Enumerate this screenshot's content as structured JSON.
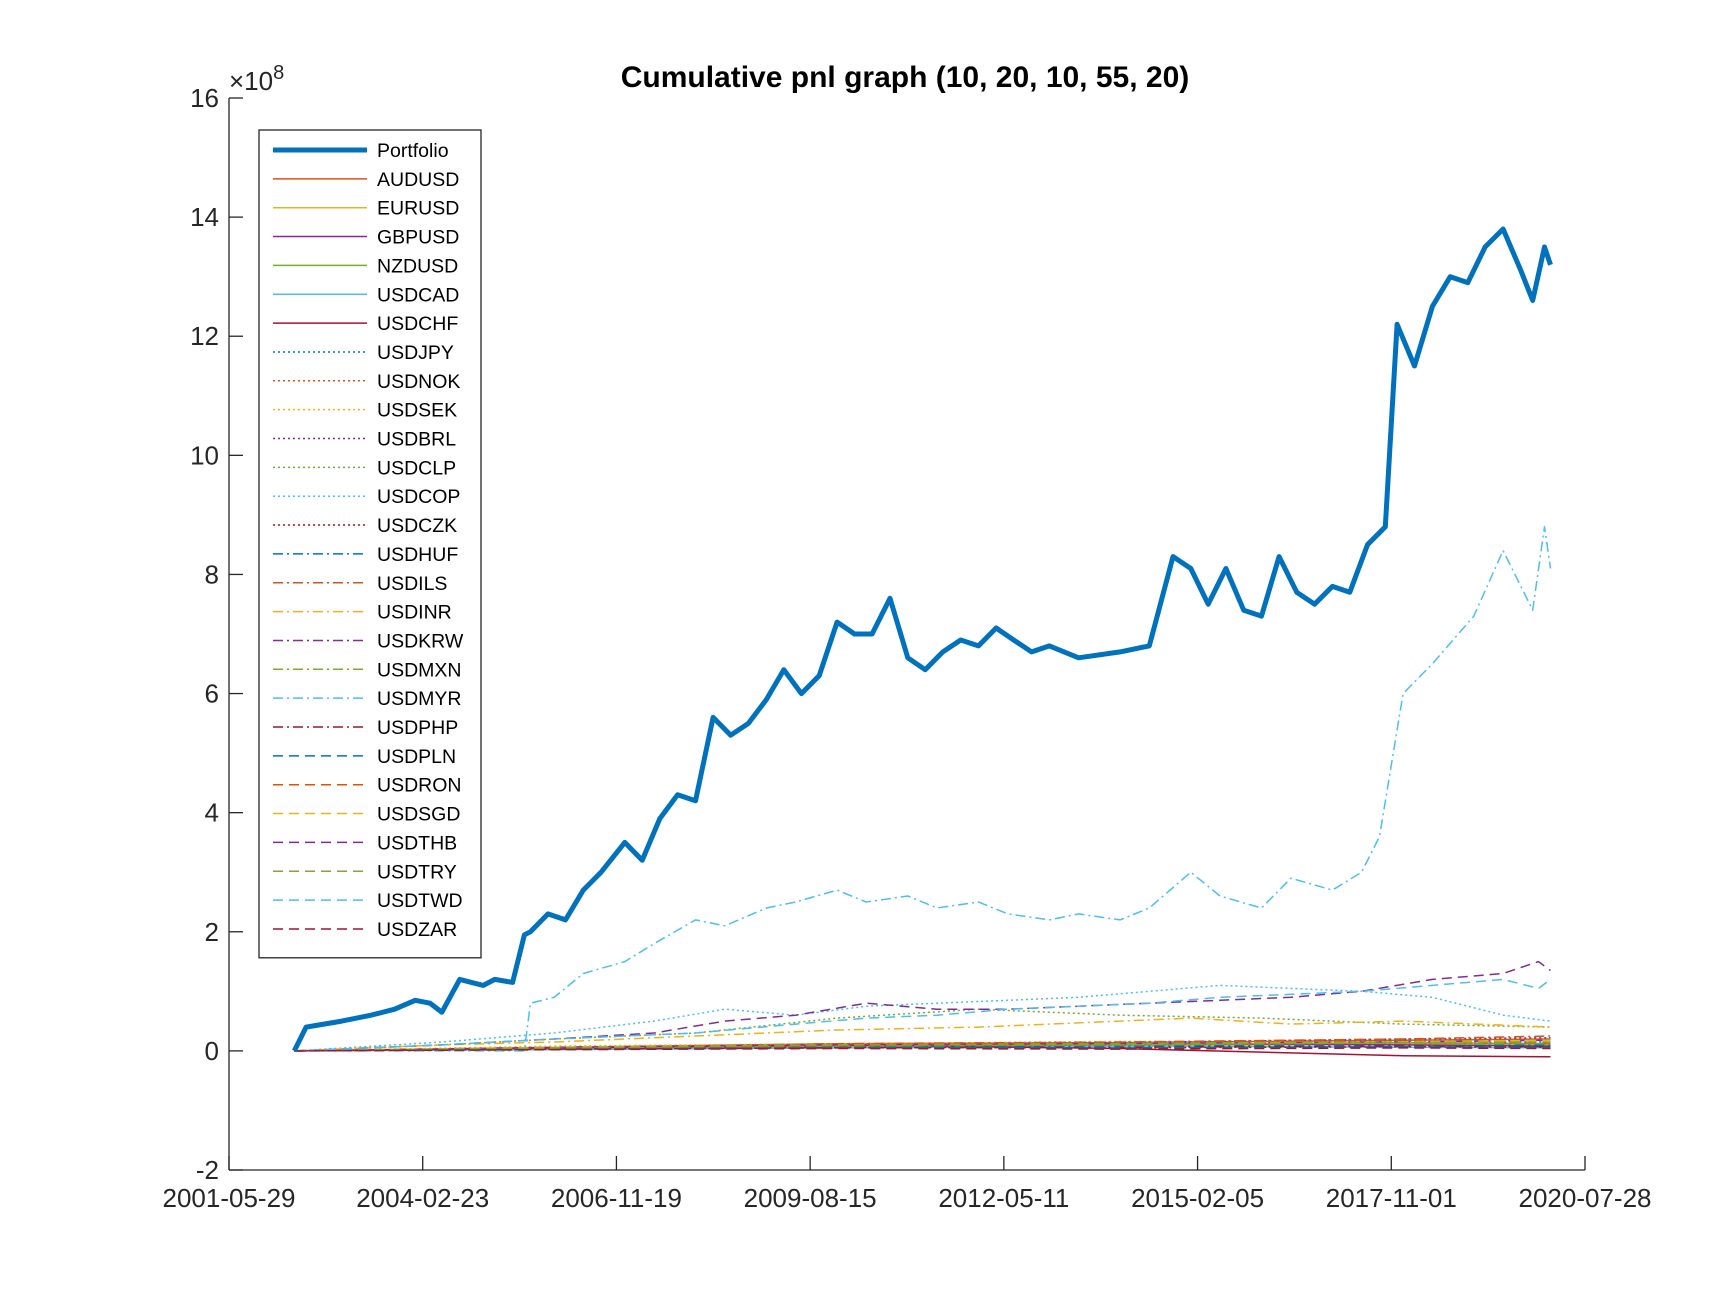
{
  "chart_data": {
    "type": "line",
    "title": "Cumulative pnl graph (10, 20, 10, 55, 20)",
    "xlabel": "",
    "ylabel": "",
    "y_multiplier_label": "×10",
    "y_multiplier_exponent": "8",
    "ylim": [
      -2,
      16
    ],
    "xlim": [
      "2001-05-29",
      "2020-07-28"
    ],
    "x_ticks": [
      "2001-05-29",
      "2004-02-23",
      "2006-11-19",
      "2009-08-15",
      "2012-05-11",
      "2015-02-05",
      "2017-11-01",
      "2020-07-28"
    ],
    "y_ticks": [
      "-2",
      "0",
      "2",
      "4",
      "6",
      "8",
      "10",
      "12",
      "14",
      "16"
    ],
    "grid": false,
    "legend_position": "top-left",
    "series": [
      {
        "name": "Portfolio",
        "color": "#0072BD",
        "style": "solid",
        "thick": true,
        "x": [
          "2002-05-01",
          "2002-07-01",
          "2002-10-01",
          "2003-01-01",
          "2003-06-01",
          "2003-10-01",
          "2004-01-15",
          "2004-04-01",
          "2004-06-01",
          "2004-09-01",
          "2004-11-01",
          "2005-01-01",
          "2005-03-01",
          "2005-06-01",
          "2005-08-01",
          "2005-09-01",
          "2005-12-01",
          "2006-03-01",
          "2006-06-01",
          "2006-09-01",
          "2007-01-01",
          "2007-04-01",
          "2007-07-01",
          "2007-10-01",
          "2008-01-01",
          "2008-04-01",
          "2008-07-01",
          "2008-10-01",
          "2009-01-01",
          "2009-04-01",
          "2009-07-01",
          "2009-10-01",
          "2010-01-01",
          "2010-04-01",
          "2010-07-01",
          "2010-10-01",
          "2011-01-01",
          "2011-04-01",
          "2011-07-01",
          "2011-10-01",
          "2012-01-01",
          "2012-04-01",
          "2012-07-01",
          "2012-10-01",
          "2013-01-01",
          "2013-06-01",
          "2014-01-01",
          "2014-06-01",
          "2014-10-01",
          "2015-01-01",
          "2015-04-01",
          "2015-07-01",
          "2015-10-01",
          "2016-01-01",
          "2016-04-01",
          "2016-07-01",
          "2016-10-01",
          "2017-01-01",
          "2017-04-01",
          "2017-07-01",
          "2017-10-01",
          "2017-12-01",
          "2018-03-01",
          "2018-06-01",
          "2018-09-01",
          "2018-12-01",
          "2019-03-01",
          "2019-06-01",
          "2019-09-01",
          "2019-11-01",
          "2020-01-01",
          "2020-02-01"
        ],
        "y": [
          0,
          0.4,
          0.45,
          0.5,
          0.6,
          0.7,
          0.85,
          0.8,
          0.65,
          1.2,
          1.15,
          1.1,
          1.2,
          1.15,
          1.95,
          2.0,
          2.3,
          2.2,
          2.7,
          3.0,
          3.5,
          3.2,
          3.9,
          4.3,
          4.2,
          5.6,
          5.3,
          5.5,
          5.9,
          6.4,
          6.0,
          6.3,
          7.2,
          7.0,
          7.0,
          7.6,
          6.6,
          6.4,
          6.7,
          6.9,
          6.8,
          7.1,
          6.9,
          6.7,
          6.8,
          6.6,
          6.7,
          6.8,
          8.3,
          8.1,
          7.5,
          8.1,
          7.4,
          7.3,
          8.3,
          7.7,
          7.5,
          7.8,
          7.7,
          8.5,
          8.8,
          12.2,
          11.5,
          12.5,
          13.0,
          12.9,
          13.5,
          13.8,
          13.1,
          12.6,
          13.5,
          13.2
        ]
      },
      {
        "name": "AUDUSD",
        "color": "#D95319",
        "style": "solid",
        "thick": false,
        "x": [
          "2002-05-01",
          "2006-01-01",
          "2010-01-01",
          "2014-01-01",
          "2018-01-01",
          "2020-02-01"
        ],
        "y": [
          0,
          0.06,
          0.12,
          0.14,
          0.18,
          0.2
        ]
      },
      {
        "name": "EURUSD",
        "color": "#EDB120",
        "style": "solid",
        "thick": false,
        "x": [
          "2002-05-01",
          "2006-01-01",
          "2010-01-01",
          "2014-01-01",
          "2018-01-01",
          "2020-02-01"
        ],
        "y": [
          0,
          0.04,
          0.1,
          0.08,
          0.12,
          0.1
        ]
      },
      {
        "name": "GBPUSD",
        "color": "#7E2F8E",
        "style": "solid",
        "thick": false,
        "x": [
          "2002-05-01",
          "2006-01-01",
          "2010-01-01",
          "2014-01-01",
          "2018-01-01",
          "2020-02-01"
        ],
        "y": [
          0,
          0.05,
          0.09,
          0.12,
          0.1,
          0.08
        ]
      },
      {
        "name": "NZDUSD",
        "color": "#77AC30",
        "style": "solid",
        "thick": false,
        "x": [
          "2002-05-01",
          "2006-01-01",
          "2010-01-01",
          "2014-01-01",
          "2018-01-01",
          "2020-02-01"
        ],
        "y": [
          0,
          0.03,
          0.08,
          0.1,
          0.14,
          0.12
        ]
      },
      {
        "name": "USDCAD",
        "color": "#4DBEEE",
        "style": "solid",
        "thick": false,
        "x": [
          "2002-05-01",
          "2006-01-01",
          "2010-01-01",
          "2014-01-01",
          "2018-01-01",
          "2020-02-01"
        ],
        "y": [
          0,
          0.02,
          0.05,
          0.08,
          0.06,
          0.05
        ]
      },
      {
        "name": "USDCHF",
        "color": "#A2142F",
        "style": "solid",
        "thick": false,
        "x": [
          "2002-05-01",
          "2006-01-01",
          "2010-01-01",
          "2014-01-01",
          "2018-01-01",
          "2020-02-01"
        ],
        "y": [
          0,
          0.05,
          0.1,
          0.04,
          -0.08,
          -0.1
        ]
      },
      {
        "name": "USDJPY",
        "color": "#0072BD",
        "style": "dotted",
        "thick": false,
        "x": [
          "2002-05-01",
          "2006-01-01",
          "2010-01-01",
          "2014-01-01",
          "2018-01-01",
          "2020-02-01"
        ],
        "y": [
          0,
          0.04,
          0.08,
          0.12,
          0.16,
          0.15
        ]
      },
      {
        "name": "USDNOK",
        "color": "#D95319",
        "style": "dotted",
        "thick": false,
        "x": [
          "2002-05-01",
          "2006-01-01",
          "2010-01-01",
          "2014-01-01",
          "2018-01-01",
          "2020-02-01"
        ],
        "y": [
          0,
          0.03,
          0.07,
          0.1,
          0.13,
          0.12
        ]
      },
      {
        "name": "USDSEK",
        "color": "#EDB120",
        "style": "dotted",
        "thick": false,
        "x": [
          "2002-05-01",
          "2006-01-01",
          "2010-01-01",
          "2014-01-01",
          "2018-01-01",
          "2020-02-01"
        ],
        "y": [
          0,
          0.08,
          0.12,
          0.16,
          0.14,
          0.18
        ]
      },
      {
        "name": "USDBRL",
        "color": "#7E2F8E",
        "style": "dotted",
        "thick": false,
        "x": [
          "2002-05-01",
          "2006-01-01",
          "2010-01-01",
          "2014-01-01",
          "2018-01-01",
          "2020-02-01"
        ],
        "y": [
          0,
          0.05,
          0.1,
          0.14,
          0.2,
          0.22
        ]
      },
      {
        "name": "USDCLP",
        "color": "#77AC30",
        "style": "dotted",
        "thick": false,
        "x": [
          "2002-05-01",
          "2004-06-01",
          "2006-01-01",
          "2008-01-01",
          "2010-01-01",
          "2012-01-01",
          "2014-01-01",
          "2016-01-01",
          "2018-01-01",
          "2020-02-01"
        ],
        "y": [
          0,
          0.1,
          0.2,
          0.3,
          0.55,
          0.7,
          0.6,
          0.55,
          0.45,
          0.4
        ]
      },
      {
        "name": "USDCOP",
        "color": "#4DBEEE",
        "style": "dotted",
        "thick": false,
        "x": [
          "2002-05-01",
          "2004-06-01",
          "2006-01-01",
          "2007-06-01",
          "2008-06-01",
          "2009-06-01",
          "2010-06-01",
          "2011-06-01",
          "2012-06-01",
          "2013-06-01",
          "2014-06-01",
          "2015-06-01",
          "2016-06-01",
          "2017-06-01",
          "2018-06-01",
          "2019-06-01",
          "2020-02-01"
        ],
        "y": [
          0,
          0.15,
          0.3,
          0.5,
          0.7,
          0.6,
          0.75,
          0.8,
          0.85,
          0.9,
          1.0,
          1.1,
          1.05,
          1.0,
          0.9,
          0.6,
          0.5
        ]
      },
      {
        "name": "USDCZK",
        "color": "#A2142F",
        "style": "dotted",
        "thick": false,
        "x": [
          "2002-05-01",
          "2006-01-01",
          "2010-01-01",
          "2014-01-01",
          "2018-01-01",
          "2020-02-01"
        ],
        "y": [
          0,
          0.03,
          0.06,
          0.05,
          0.07,
          0.06
        ]
      },
      {
        "name": "USDHUF",
        "color": "#0072BD",
        "style": "dashdot",
        "thick": false,
        "x": [
          "2002-05-01",
          "2006-01-01",
          "2010-01-01",
          "2014-01-01",
          "2018-01-01",
          "2020-02-01"
        ],
        "y": [
          0,
          0.04,
          0.06,
          0.09,
          0.08,
          0.1
        ]
      },
      {
        "name": "USDILS",
        "color": "#D95319",
        "style": "dashdot",
        "thick": false,
        "x": [
          "2002-05-01",
          "2006-01-01",
          "2010-01-01",
          "2014-01-01",
          "2018-01-01",
          "2020-02-01"
        ],
        "y": [
          0,
          0.05,
          0.12,
          0.15,
          0.2,
          0.25
        ]
      },
      {
        "name": "USDINR",
        "color": "#EDB120",
        "style": "dashdot",
        "thick": false,
        "x": [
          "2002-05-01",
          "2004-06-01",
          "2006-01-01",
          "2008-01-01",
          "2010-01-01",
          "2012-01-01",
          "2014-01-01",
          "2015-01-01",
          "2016-06-01",
          "2018-01-01",
          "2020-02-01"
        ],
        "y": [
          0,
          0.1,
          0.15,
          0.25,
          0.35,
          0.4,
          0.5,
          0.55,
          0.45,
          0.5,
          0.4
        ]
      },
      {
        "name": "USDKRW",
        "color": "#7E2F8E",
        "style": "dashdot",
        "thick": false,
        "x": [
          "2002-05-01",
          "2006-01-01",
          "2010-01-01",
          "2014-01-01",
          "2018-01-01",
          "2020-02-01"
        ],
        "y": [
          0,
          0.06,
          0.1,
          0.12,
          0.15,
          0.18
        ]
      },
      {
        "name": "USDMXN",
        "color": "#77AC30",
        "style": "dashdot",
        "thick": false,
        "x": [
          "2002-05-01",
          "2006-01-01",
          "2010-01-01",
          "2014-01-01",
          "2018-01-01",
          "2020-02-01"
        ],
        "y": [
          0,
          0.04,
          0.08,
          0.1,
          0.13,
          0.12
        ]
      },
      {
        "name": "USDMYR",
        "color": "#4DBEEE",
        "style": "dashdot",
        "thick": false,
        "x": [
          "2002-05-01",
          "2005-08-01",
          "2005-09-01",
          "2006-01-01",
          "2006-06-01",
          "2007-01-01",
          "2007-06-01",
          "2008-01-01",
          "2008-06-01",
          "2009-01-01",
          "2009-06-01",
          "2010-01-01",
          "2010-06-01",
          "2011-01-01",
          "2011-06-01",
          "2012-01-01",
          "2012-06-01",
          "2013-01-01",
          "2013-06-01",
          "2014-01-01",
          "2014-06-01",
          "2015-01-01",
          "2015-06-01",
          "2016-01-01",
          "2016-06-01",
          "2017-01-01",
          "2017-06-01",
          "2017-09-01",
          "2018-01-01",
          "2018-06-01",
          "2019-01-01",
          "2019-06-01",
          "2019-11-01",
          "2020-01-01",
          "2020-02-01"
        ],
        "y": [
          0,
          0,
          0.8,
          0.9,
          1.3,
          1.5,
          1.8,
          2.2,
          2.1,
          2.4,
          2.5,
          2.7,
          2.5,
          2.6,
          2.4,
          2.5,
          2.3,
          2.2,
          2.3,
          2.2,
          2.4,
          3.0,
          2.6,
          2.4,
          2.9,
          2.7,
          3.0,
          3.6,
          6.0,
          6.5,
          7.3,
          8.4,
          7.4,
          8.8,
          8.1
        ]
      },
      {
        "name": "USDPHP",
        "color": "#A2142F",
        "style": "dashdot",
        "thick": false,
        "x": [
          "2002-05-01",
          "2006-01-01",
          "2010-01-01",
          "2014-01-01",
          "2018-01-01",
          "2020-02-01"
        ],
        "y": [
          0,
          0.03,
          0.05,
          0.06,
          0.08,
          0.07
        ]
      },
      {
        "name": "USDPLN",
        "color": "#0072BD",
        "style": "dashed",
        "thick": false,
        "x": [
          "2002-05-01",
          "2006-01-01",
          "2010-01-01",
          "2014-01-01",
          "2018-01-01",
          "2020-02-01"
        ],
        "y": [
          0,
          0.04,
          0.06,
          0.05,
          0.07,
          0.06
        ]
      },
      {
        "name": "USDRON",
        "color": "#D95319",
        "style": "dashed",
        "thick": false,
        "x": [
          "2002-05-01",
          "2006-01-01",
          "2010-01-01",
          "2014-01-01",
          "2018-01-01",
          "2020-02-01"
        ],
        "y": [
          0,
          0.05,
          0.08,
          0.12,
          0.15,
          0.14
        ]
      },
      {
        "name": "USDSGD",
        "color": "#EDB120",
        "style": "dashed",
        "thick": false,
        "x": [
          "2002-05-01",
          "2006-01-01",
          "2010-01-01",
          "2014-01-01",
          "2018-01-01",
          "2020-02-01"
        ],
        "y": [
          0,
          0.06,
          0.1,
          0.12,
          0.15,
          0.18
        ]
      },
      {
        "name": "USDTHB",
        "color": "#7E2F8E",
        "style": "dashed",
        "thick": false,
        "x": [
          "2002-05-01",
          "2004-06-01",
          "2006-01-01",
          "2007-06-01",
          "2008-06-01",
          "2009-06-01",
          "2010-06-01",
          "2011-06-01",
          "2012-06-01",
          "2013-06-01",
          "2014-06-01",
          "2015-06-01",
          "2016-06-01",
          "2017-06-01",
          "2018-06-01",
          "2019-06-01",
          "2019-12-01",
          "2020-02-01"
        ],
        "y": [
          0,
          0.1,
          0.2,
          0.3,
          0.5,
          0.6,
          0.8,
          0.7,
          0.7,
          0.75,
          0.8,
          0.85,
          0.9,
          1.0,
          1.2,
          1.3,
          1.5,
          1.35
        ]
      },
      {
        "name": "USDTRY",
        "color": "#77AC30",
        "style": "dashed",
        "thick": false,
        "x": [
          "2002-05-01",
          "2006-01-01",
          "2010-01-01",
          "2014-01-01",
          "2018-01-01",
          "2020-02-01"
        ],
        "y": [
          0,
          0.05,
          0.1,
          0.12,
          0.14,
          0.15
        ]
      },
      {
        "name": "USDTWD",
        "color": "#4DBEEE",
        "style": "dashed",
        "thick": false,
        "x": [
          "2002-05-01",
          "2004-06-01",
          "2006-01-01",
          "2008-01-01",
          "2009-06-01",
          "2010-06-01",
          "2011-06-01",
          "2012-06-01",
          "2013-06-01",
          "2014-06-01",
          "2015-06-01",
          "2016-06-01",
          "2017-06-01",
          "2018-06-01",
          "2019-06-01",
          "2019-12-01",
          "2020-02-01"
        ],
        "y": [
          0,
          0.1,
          0.2,
          0.3,
          0.45,
          0.55,
          0.6,
          0.7,
          0.75,
          0.8,
          0.9,
          0.95,
          1.0,
          1.1,
          1.2,
          1.05,
          1.2
        ]
      },
      {
        "name": "USDZAR",
        "color": "#A2142F",
        "style": "dashed",
        "thick": false,
        "x": [
          "2002-05-01",
          "2006-01-01",
          "2010-01-01",
          "2014-01-01",
          "2018-01-01",
          "2020-02-01"
        ],
        "y": [
          0,
          0.02,
          0.04,
          0.03,
          0.05,
          0.04
        ]
      }
    ]
  }
}
